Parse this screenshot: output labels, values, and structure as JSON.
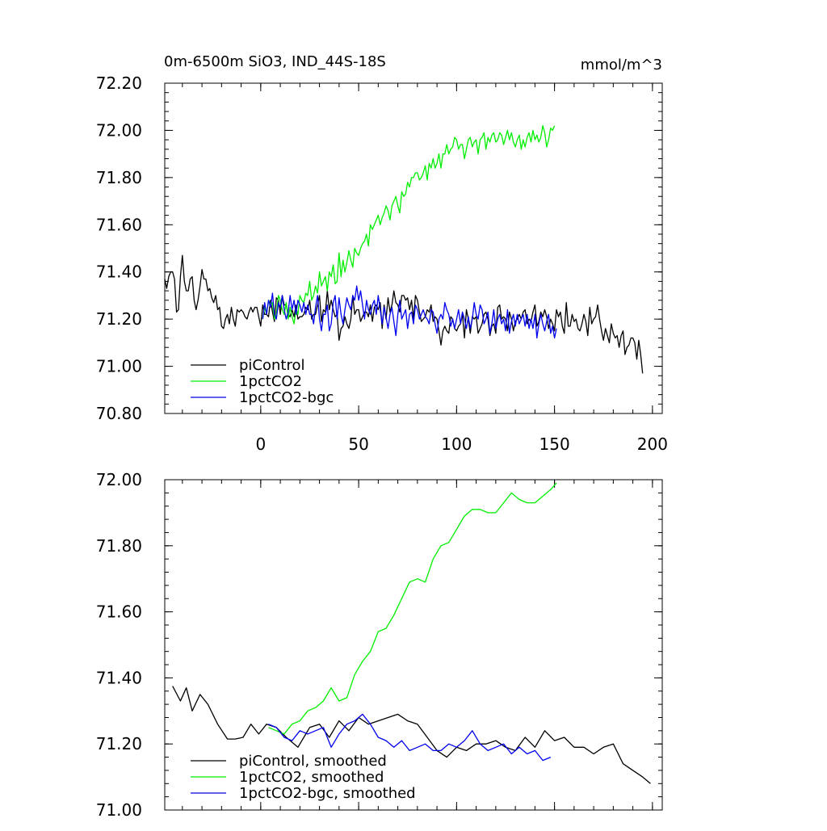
{
  "chart_data": [
    {
      "type": "line",
      "title": "0m-6500m SiO3, IND_44S-18S",
      "units": "mmol/m^3",
      "xlim": [
        -49,
        205
      ],
      "ylim": [
        70.8,
        72.2
      ],
      "x_ticks": [
        0,
        50,
        100,
        150,
        200
      ],
      "y_ticks": [
        "72.20",
        "72.00",
        "71.80",
        "71.60",
        "71.40",
        "71.20",
        "71.00",
        "70.80"
      ],
      "y_tick_values": [
        72.2,
        72.0,
        71.8,
        71.6,
        71.4,
        71.2,
        71.0,
        70.8
      ],
      "legend": {
        "placement": "bottom-left",
        "entries": [
          {
            "label": "piControl",
            "color": "#000000"
          },
          {
            "label": "1pctCO2",
            "color": "#00ee00"
          },
          {
            "label": "1pctCO2-bgc",
            "color": "#0000ee"
          }
        ]
      },
      "series": [
        {
          "name": "piControl",
          "color": "#000000",
          "x_start": -49,
          "values": [
            71.37,
            71.33,
            71.38,
            71.4,
            71.4,
            71.37,
            71.23,
            71.24,
            71.38,
            71.47,
            71.36,
            71.32,
            71.32,
            71.37,
            71.38,
            71.28,
            71.24,
            71.28,
            71.34,
            71.41,
            71.37,
            71.37,
            71.32,
            71.33,
            71.29,
            71.27,
            71.3,
            71.24,
            71.25,
            71.17,
            71.16,
            71.2,
            71.22,
            71.18,
            71.25,
            71.2,
            71.17,
            71.24,
            71.23,
            71.24,
            71.23,
            71.21,
            71.2,
            71.23,
            71.25,
            71.23,
            71.25,
            71.25,
            71.21,
            71.17,
            71.26,
            71.22,
            71.22,
            71.21,
            71.28,
            71.23,
            71.19,
            71.29,
            71.28,
            71.22,
            71.3,
            71.26,
            71.26,
            71.22,
            71.21,
            71.24,
            71.21,
            71.26,
            71.2,
            71.21,
            71.21,
            71.22,
            71.25,
            71.24,
            71.28,
            71.2,
            71.22,
            71.22,
            71.26,
            71.3,
            71.19,
            71.24,
            71.23,
            71.32,
            71.24,
            71.28,
            71.24,
            71.21,
            71.22,
            71.11,
            71.16,
            71.17,
            71.21,
            71.18,
            71.16,
            71.2,
            71.3,
            71.22,
            71.24,
            71.24,
            71.19,
            71.21,
            71.23,
            71.23,
            71.21,
            71.26,
            71.19,
            71.25,
            71.26,
            71.24,
            71.27,
            71.16,
            71.26,
            71.2,
            71.29,
            71.23,
            71.26,
            71.32,
            71.27,
            71.26,
            71.23,
            71.3,
            71.3,
            71.28,
            71.29,
            71.24,
            71.28,
            71.2,
            71.3,
            71.28,
            71.23,
            71.19,
            71.2,
            71.21,
            71.24,
            71.23,
            71.26,
            71.19,
            71.21,
            71.2,
            71.15,
            71.09,
            71.15,
            71.17,
            71.15,
            71.14,
            71.21,
            71.2,
            71.16,
            71.15,
            71.17,
            71.18,
            71.22,
            71.12,
            71.24,
            71.2,
            71.14,
            71.21,
            71.2,
            71.21,
            71.14,
            71.16,
            71.18,
            71.22,
            71.23,
            71.2,
            71.13,
            71.17,
            71.18,
            71.14,
            71.25,
            71.26,
            71.2,
            71.21,
            71.2,
            71.15,
            71.23,
            71.2,
            71.15,
            71.19,
            71.2,
            71.22,
            71.2,
            71.23,
            71.24,
            71.18,
            71.2,
            71.19,
            71.23,
            71.26,
            71.17,
            71.19,
            71.23,
            71.21,
            71.24,
            71.21,
            71.16,
            71.2,
            71.18,
            71.15,
            71.24,
            71.21,
            71.23,
            71.17,
            71.14,
            71.27,
            71.17,
            71.17,
            71.22,
            71.19,
            71.2,
            71.16,
            71.15,
            71.18,
            71.22,
            71.19,
            71.13,
            71.25,
            71.18,
            71.2,
            71.21,
            71.26,
            71.2,
            71.15,
            71.11,
            71.16,
            71.13,
            71.1,
            71.18,
            71.14,
            71.12,
            71.13,
            71.08,
            71.13,
            71.15,
            71.05,
            71.08,
            71.09,
            71.12,
            71.12,
            71.1,
            71.03,
            71.11,
            71.05,
            70.97
          ]
        },
        {
          "name": "1pctCO2",
          "color": "#00ee00",
          "x_start": 1,
          "values": [
            71.2,
            71.25,
            71.22,
            71.28,
            71.26,
            71.27,
            71.2,
            71.22,
            71.3,
            71.28,
            71.24,
            71.22,
            71.27,
            71.2,
            71.25,
            71.21,
            71.18,
            71.24,
            71.22,
            71.3,
            71.28,
            71.27,
            71.31,
            71.3,
            71.36,
            71.28,
            71.3,
            71.34,
            71.31,
            71.4,
            71.34,
            71.36,
            71.38,
            71.32,
            71.4,
            71.38,
            71.43,
            71.35,
            71.36,
            71.48,
            71.38,
            71.45,
            71.4,
            71.44,
            71.49,
            71.45,
            71.42,
            71.5,
            71.48,
            71.47,
            71.5,
            71.52,
            71.53,
            71.56,
            71.51,
            71.6,
            71.58,
            71.6,
            71.62,
            71.64,
            71.6,
            71.63,
            71.65,
            71.68,
            71.66,
            71.62,
            71.68,
            71.7,
            71.72,
            71.68,
            71.65,
            71.74,
            71.72,
            71.73,
            71.78,
            71.76,
            71.8,
            71.8,
            71.82,
            71.82,
            71.79,
            71.8,
            71.82,
            71.85,
            71.79,
            71.86,
            71.84,
            71.88,
            71.84,
            71.86,
            71.9,
            71.84,
            71.9,
            71.9,
            71.94,
            71.9,
            71.92,
            71.93,
            71.97,
            71.96,
            71.92,
            71.94,
            71.94,
            71.88,
            71.92,
            71.96,
            71.97,
            71.93,
            71.95,
            71.96,
            71.9,
            71.96,
            71.97,
            71.99,
            71.92,
            71.97,
            71.95,
            71.98,
            71.99,
            71.95,
            71.96,
            71.99,
            71.98,
            71.94,
            71.97,
            72.0,
            71.96,
            71.99,
            71.95,
            71.93,
            71.96,
            71.98,
            71.92,
            71.96,
            71.93,
            71.97,
            71.99,
            71.95,
            72.0,
            71.96,
            71.98,
            71.95,
            71.97,
            72.02,
            71.99,
            71.93,
            71.96,
            72.01,
            72.0,
            72.02
          ]
        },
        {
          "name": "1pctCO2-bgc",
          "color": "#0000ee",
          "x_start": 1,
          "values": [
            71.2,
            71.27,
            71.22,
            71.28,
            71.25,
            71.31,
            71.22,
            71.2,
            71.27,
            71.25,
            71.3,
            71.24,
            71.2,
            71.23,
            71.3,
            71.24,
            71.28,
            71.22,
            71.28,
            71.26,
            71.23,
            71.27,
            71.22,
            71.26,
            71.22,
            71.22,
            71.18,
            71.25,
            71.3,
            71.2,
            71.15,
            71.22,
            71.22,
            71.26,
            71.15,
            71.18,
            71.27,
            71.3,
            71.2,
            71.29,
            71.22,
            71.18,
            71.24,
            71.29,
            71.26,
            71.24,
            71.3,
            71.28,
            71.34,
            71.28,
            71.32,
            71.26,
            71.2,
            71.28,
            71.24,
            71.22,
            71.26,
            71.28,
            71.22,
            71.3,
            71.24,
            71.18,
            71.25,
            71.21,
            71.16,
            71.22,
            71.25,
            71.19,
            71.13,
            71.22,
            71.28,
            71.2,
            71.22,
            71.24,
            71.16,
            71.22,
            71.23,
            71.18,
            71.26,
            71.24,
            71.2,
            71.22,
            71.24,
            71.21,
            71.2,
            71.18,
            71.24,
            71.23,
            71.18,
            71.14,
            71.2,
            71.22,
            71.2,
            71.27,
            71.24,
            71.22,
            71.17,
            71.2,
            71.16,
            71.2,
            71.24,
            71.18,
            71.23,
            71.2,
            71.16,
            71.21,
            71.16,
            71.2,
            71.27,
            71.22,
            71.2,
            71.26,
            71.24,
            71.18,
            71.2,
            71.23,
            71.14,
            71.18,
            71.24,
            71.16,
            71.2,
            71.22,
            71.18,
            71.2,
            71.15,
            71.24,
            71.14,
            71.19,
            71.22,
            71.17,
            71.22,
            71.18,
            71.2,
            71.22,
            71.17,
            71.22,
            71.16,
            71.2,
            71.16,
            71.22,
            71.12,
            71.18,
            71.22,
            71.18,
            71.15,
            71.19,
            71.22,
            71.14,
            71.17,
            71.12,
            71.16
          ]
        }
      ]
    },
    {
      "type": "line",
      "xlim": [
        -49,
        205
      ],
      "ylim": [
        71.0,
        72.0
      ],
      "x_tick_marks": [
        0,
        50,
        100,
        150,
        200
      ],
      "y_ticks": [
        "72.00",
        "71.80",
        "71.60",
        "71.40",
        "71.20",
        "71.00"
      ],
      "y_tick_values": [
        72.0,
        71.8,
        71.6,
        71.4,
        71.2,
        71.0
      ],
      "legend": {
        "placement": "bottom-left",
        "entries": [
          {
            "label": "piControl, smoothed",
            "color": "#000000"
          },
          {
            "label": "1pctCO2, smoothed",
            "color": "#00ee00"
          },
          {
            "label": "1pctCO2-bgc, smoothed",
            "color": "#0000ee"
          }
        ]
      },
      "series": [
        {
          "name": "piControl, smoothed",
          "color": "#000000",
          "x": [
            -45,
            -41,
            -38,
            -35,
            -31,
            -27,
            -22,
            -17,
            -13,
            -9,
            -5,
            -1,
            3,
            8,
            13,
            19,
            25,
            30,
            35,
            40,
            45,
            50,
            55,
            60,
            65,
            70,
            75,
            80,
            85,
            90,
            95,
            100,
            105,
            110,
            115,
            120,
            125,
            130,
            135,
            140,
            145,
            150,
            155,
            160,
            165,
            170,
            175,
            180,
            185,
            190,
            195,
            199
          ],
          "y": [
            71.375,
            71.33,
            71.37,
            71.3,
            71.35,
            71.32,
            71.26,
            71.215,
            71.215,
            71.22,
            71.26,
            71.23,
            71.26,
            71.25,
            71.22,
            71.19,
            71.25,
            71.26,
            71.22,
            71.27,
            71.24,
            71.28,
            71.26,
            71.27,
            71.28,
            71.29,
            71.27,
            71.26,
            71.22,
            71.18,
            71.16,
            71.19,
            71.18,
            71.2,
            71.2,
            71.21,
            71.19,
            71.18,
            71.22,
            71.19,
            71.24,
            71.21,
            71.22,
            71.19,
            71.19,
            71.17,
            71.19,
            71.2,
            71.14,
            71.12,
            71.1,
            71.08
          ]
        },
        {
          "name": "1pctCO2, smoothed",
          "color": "#00ee00",
          "x": [
            4,
            8,
            12,
            16,
            20,
            24,
            28,
            32,
            36,
            40,
            44,
            48,
            52,
            56,
            60,
            64,
            68,
            72,
            76,
            80,
            84,
            88,
            92,
            96,
            100,
            104,
            108,
            112,
            116,
            120,
            124,
            128,
            132,
            136,
            140,
            144,
            148,
            151
          ],
          "y": [
            71.25,
            71.24,
            71.23,
            71.26,
            71.27,
            71.3,
            71.31,
            71.33,
            71.37,
            71.33,
            71.34,
            71.41,
            71.45,
            71.48,
            71.54,
            71.55,
            71.59,
            71.64,
            71.69,
            71.7,
            71.69,
            71.76,
            71.8,
            71.81,
            71.85,
            71.89,
            71.91,
            71.91,
            71.9,
            71.9,
            71.93,
            71.96,
            71.94,
            71.93,
            71.93,
            71.95,
            71.97,
            71.99
          ]
        },
        {
          "name": "1pctCO2-bgc, smoothed",
          "color": "#0000ee",
          "x": [
            4,
            8,
            12,
            16,
            20,
            24,
            28,
            32,
            36,
            40,
            44,
            48,
            52,
            56,
            60,
            64,
            68,
            72,
            76,
            80,
            84,
            88,
            92,
            96,
            100,
            104,
            108,
            112,
            116,
            120,
            124,
            128,
            132,
            136,
            140,
            144,
            148
          ],
          "y": [
            71.26,
            71.25,
            71.22,
            71.21,
            71.24,
            71.23,
            71.24,
            71.25,
            71.19,
            71.23,
            71.26,
            71.27,
            71.29,
            71.26,
            71.22,
            71.21,
            71.19,
            71.21,
            71.18,
            71.19,
            71.2,
            71.18,
            71.18,
            71.2,
            71.19,
            71.21,
            71.24,
            71.2,
            71.18,
            71.19,
            71.2,
            71.17,
            71.19,
            71.17,
            71.18,
            71.15,
            71.16
          ]
        }
      ]
    }
  ]
}
